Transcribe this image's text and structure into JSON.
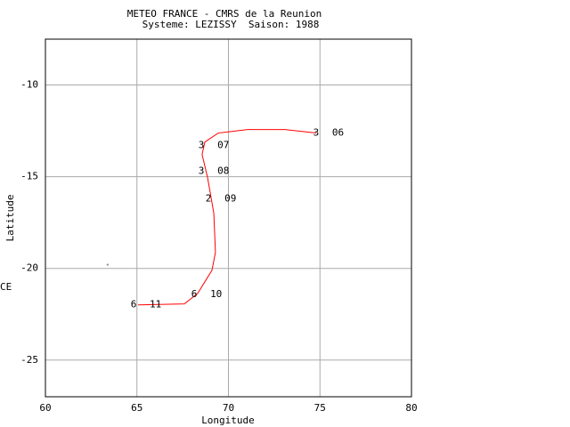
{
  "chart_data": {
    "type": "line",
    "title": "METEO FRANCE - CMRS de la Reunion",
    "subtitle": "Systeme: LEZISSY  Saison: 1988",
    "x_label": "Longitude",
    "y_label": "Latitude",
    "side_text": "CE",
    "xlim": [
      60,
      80
    ],
    "ylim": [
      -27,
      -7.5
    ],
    "xticks": [
      60,
      65,
      70,
      75,
      80
    ],
    "yticks": [
      -10,
      -15,
      -20,
      -25
    ],
    "grid": true,
    "series": [
      {
        "color": "#ff0000",
        "x": [
          65.06,
          67.59,
          68.32,
          69.1,
          69.29,
          69.2,
          68.86,
          68.56,
          68.71,
          69.44,
          71.05,
          73.09,
          74.79
        ],
        "values": [
          -21.99,
          -21.94,
          -21.36,
          -20.1,
          -19.13,
          -16.99,
          -15.05,
          -13.79,
          -13.11,
          -12.62,
          -12.43,
          -12.43,
          -12.62
        ]
      }
    ],
    "annotations": [
      {
        "x": 74.79,
        "y": -12.62,
        "intensity": "3",
        "day": "06"
      },
      {
        "x": 68.52,
        "y": -13.3,
        "intensity": "3",
        "day": "07"
      },
      {
        "x": 68.52,
        "y": -14.71,
        "intensity": "3",
        "day": "08"
      },
      {
        "x": 68.91,
        "y": -16.21,
        "intensity": "2",
        "day": "09"
      },
      {
        "x": 68.13,
        "y": -21.41,
        "intensity": "6",
        "day": "10"
      },
      {
        "x": 64.82,
        "y": -21.99,
        "intensity": "6",
        "day": "11"
      }
    ],
    "extra_point": {
      "x": 63.4,
      "y": -19.8,
      "color": "#999999"
    }
  }
}
